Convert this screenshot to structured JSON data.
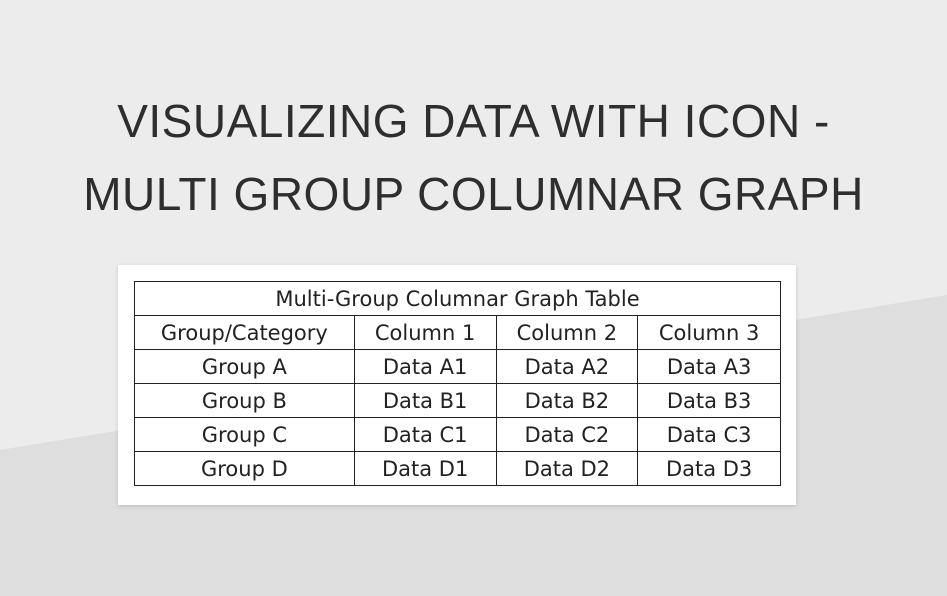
{
  "header": {
    "title_lines": [
      "VISUALIZING DATA WITH ICON -",
      "MULTI GROUP COLUMNAR GRAPH"
    ]
  },
  "table": {
    "caption": "Multi-Group Columnar Graph Table",
    "columns": [
      "Group/Category",
      "Column 1",
      "Column 2",
      "Column 3"
    ],
    "rows": [
      [
        "Group A",
        "Data A1",
        "Data A2",
        "Data A3"
      ],
      [
        "Group B",
        "Data B1",
        "Data B2",
        "Data B3"
      ],
      [
        "Group C",
        "Data C1",
        "Data C2",
        "Data C3"
      ],
      [
        "Group D",
        "Data D1",
        "Data D2",
        "Data D3"
      ]
    ]
  }
}
